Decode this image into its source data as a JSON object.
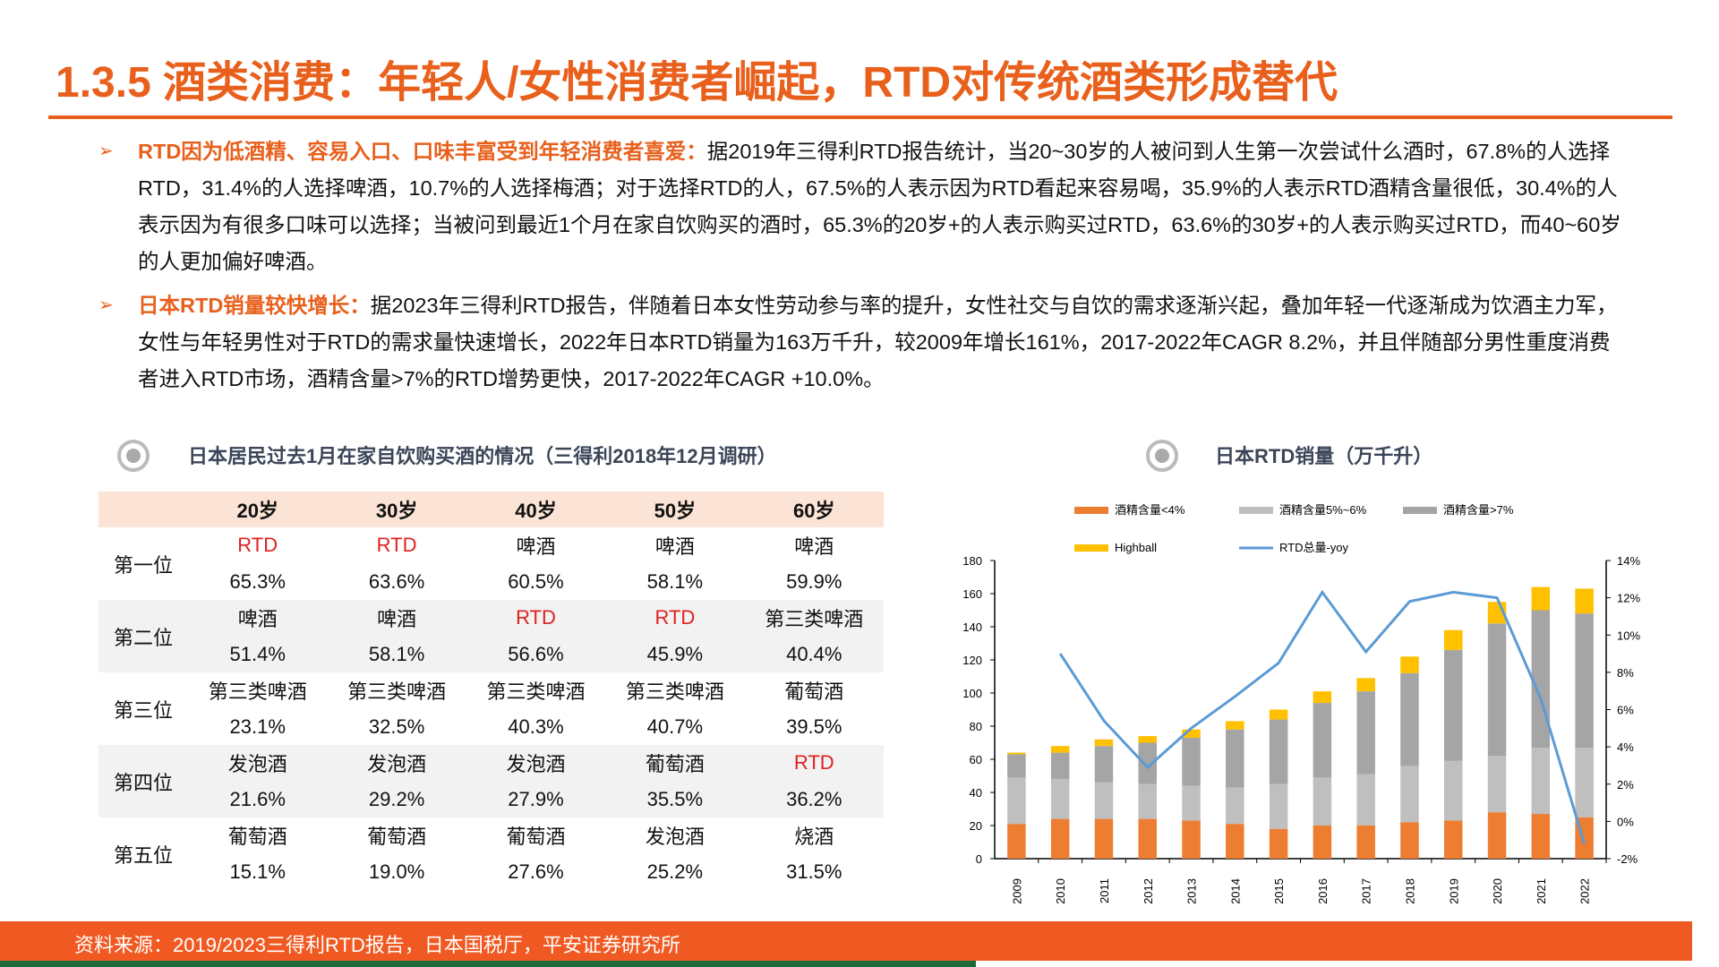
{
  "title": "1.3.5 酒类消费：年轻人/女性消费者崛起，RTD对传统酒类形成替代",
  "bullets": [
    {
      "highlight": "RTD因为低酒精、容易入口、口味丰富受到年轻消费者喜爱：",
      "text": "据2019年三得利RTD报告统计，当20~30岁的人被问到人生第一次尝试什么酒时，67.8%的人选择RTD，31.4%的人选择啤酒，10.7%的人选择梅酒；对于选择RTD的人，67.5%的人表示因为RTD看起来容易喝，35.9%的人表示RTD酒精含量很低，30.4%的人表示因为有很多口味可以选择；当被问到最近1个月在家自饮购买的酒时，65.3%的20岁+的人表示购买过RTD，63.6%的30岁+的人表示购买过RTD，而40~60岁的人更加偏好啤酒。"
    },
    {
      "highlight": "日本RTD销量较快增长：",
      "text": "据2023年三得利RTD报告，伴随着日本女性劳动参与率的提升，女性社交与自饮的需求逐渐兴起，叠加年轻一代逐渐成为饮酒主力军，女性与年轻男性对于RTD的需求量快速增长，2022年日本RTD销量为163万千升，较2009年增长161%，2017-2022年CAGR 8.2%，并且伴随部分男性重度消费者进入RTD市场，酒精含量>7%的RTD增势更快，2017-2022年CAGR +10.0%。"
    }
  ],
  "table": {
    "title": "日本居民过去1月在家自饮购买酒的情况（三得利2018年12月调研）",
    "headers": [
      "",
      "20岁",
      "30岁",
      "40岁",
      "50岁",
      "60岁"
    ],
    "rows": [
      {
        "rank": "第一位",
        "items": [
          "RTD",
          "RTD",
          "啤酒",
          "啤酒",
          "啤酒"
        ],
        "values": [
          "65.3%",
          "63.6%",
          "60.5%",
          "58.1%",
          "59.9%"
        ]
      },
      {
        "rank": "第二位",
        "items": [
          "啤酒",
          "啤酒",
          "RTD",
          "RTD",
          "第三类啤酒"
        ],
        "values": [
          "51.4%",
          "58.1%",
          "56.6%",
          "45.9%",
          "40.4%"
        ]
      },
      {
        "rank": "第三位",
        "items": [
          "第三类啤酒",
          "第三类啤酒",
          "第三类啤酒",
          "第三类啤酒",
          "葡萄酒"
        ],
        "values": [
          "23.1%",
          "32.5%",
          "40.3%",
          "40.7%",
          "39.5%"
        ]
      },
      {
        "rank": "第四位",
        "items": [
          "发泡酒",
          "发泡酒",
          "发泡酒",
          "葡萄酒",
          "RTD"
        ],
        "values": [
          "21.6%",
          "29.2%",
          "27.9%",
          "35.5%",
          "36.2%"
        ]
      },
      {
        "rank": "第五位",
        "items": [
          "葡萄酒",
          "葡萄酒",
          "葡萄酒",
          "发泡酒",
          "烧酒"
        ],
        "values": [
          "15.1%",
          "19.0%",
          "27.6%",
          "25.2%",
          "31.5%"
        ]
      }
    ],
    "highlight_item": "RTD",
    "highlight_color": "#E02020"
  },
  "chart_data": {
    "type": "bar",
    "title": "日本RTD销量（万千升）",
    "categories": [
      "2009",
      "2010",
      "2011",
      "2012",
      "2013",
      "2014",
      "2015",
      "2016",
      "2017",
      "2018",
      "2019",
      "2020",
      "2021",
      "2022"
    ],
    "stacked": true,
    "series": [
      {
        "name": "酒精含量<4%",
        "color": "#ED7D31",
        "values": [
          21,
          24,
          24,
          24,
          23,
          21,
          18,
          20,
          20,
          22,
          23,
          28,
          27,
          25
        ]
      },
      {
        "name": "酒精含量5%~6%",
        "color": "#BFBFBF",
        "values": [
          28,
          24,
          22,
          21,
          21,
          22,
          27,
          29,
          31,
          34,
          36,
          34,
          40,
          42
        ]
      },
      {
        "name": "酒精含量>7%",
        "color": "#A5A5A5",
        "values": [
          14,
          16,
          22,
          25,
          29,
          35,
          39,
          45,
          50,
          56,
          67,
          80,
          83,
          81
        ]
      },
      {
        "name": "Highball",
        "color": "#FFC000",
        "values": [
          1,
          4,
          4,
          4,
          5,
          5,
          6,
          7,
          8,
          10,
          12,
          13,
          14,
          15
        ]
      }
    ],
    "line": {
      "name": "RTD总量-yoy",
      "color": "#5B9BD5",
      "axis": "right",
      "values": [
        null,
        9.0,
        5.4,
        2.9,
        5.0,
        6.7,
        8.5,
        12.3,
        9.1,
        11.8,
        12.3,
        12.0,
        6.6,
        -1.2
      ]
    },
    "ylim": [
      0,
      180
    ],
    "yticks": [
      "0",
      "20",
      "40",
      "60",
      "80",
      "100",
      "120",
      "140",
      "160",
      "180"
    ],
    "y2lim": [
      -2,
      14
    ],
    "y2ticks": [
      "-2%",
      "0%",
      "2%",
      "4%",
      "6%",
      "8%",
      "10%",
      "12%",
      "14%"
    ],
    "legend": "top",
    "grid": false
  },
  "footer": {
    "source": "资料来源：2019/2023三得利RTD报告，日本国税厅，平安证券研究所"
  }
}
